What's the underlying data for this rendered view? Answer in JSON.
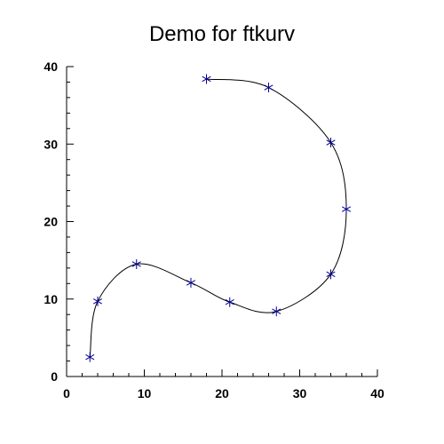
{
  "chart_data": {
    "type": "line",
    "title": "Demo for ftkurv",
    "xlabel": "",
    "ylabel": "",
    "xlim": [
      0,
      40
    ],
    "ylim": [
      0,
      40
    ],
    "x_ticks": [
      0,
      10,
      20,
      30,
      40
    ],
    "y_ticks": [
      0,
      10,
      20,
      30,
      40
    ],
    "grid": false,
    "series": [
      {
        "marker": "asterisk",
        "marker_color": "#00008b",
        "line_color": "#000000",
        "line": "smooth curve through points",
        "points": [
          {
            "x": 3,
            "y": 2.5
          },
          {
            "x": 4,
            "y": 9.7
          },
          {
            "x": 9,
            "y": 14.5
          },
          {
            "x": 16,
            "y": 12.1
          },
          {
            "x": 21,
            "y": 9.6
          },
          {
            "x": 27,
            "y": 8.4
          },
          {
            "x": 34,
            "y": 13.2
          },
          {
            "x": 36,
            "y": 21.6
          },
          {
            "x": 34,
            "y": 30.2
          },
          {
            "x": 26,
            "y": 37.3
          },
          {
            "x": 18,
            "y": 38.4
          }
        ]
      }
    ]
  }
}
